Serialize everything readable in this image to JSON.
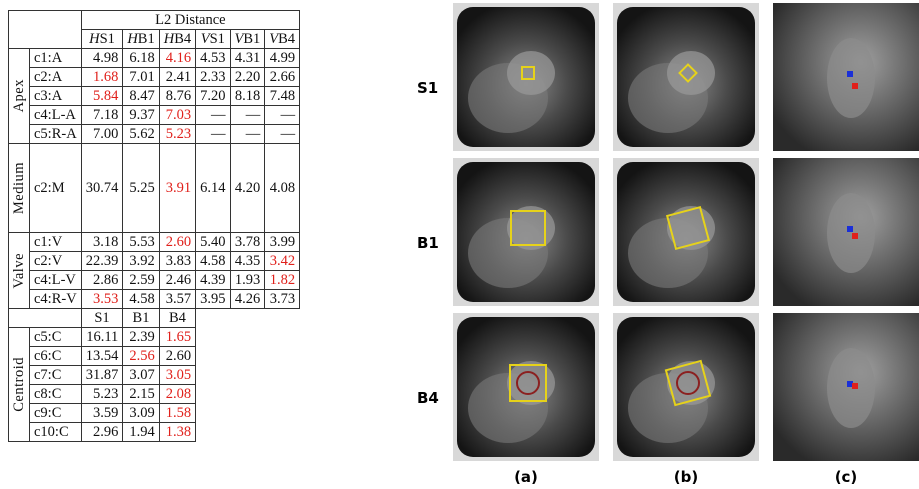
{
  "table": {
    "header": "L2 Distance",
    "columns": [
      "HS1",
      "HB1",
      "HB4",
      "VS1",
      "VB1",
      "VB4"
    ],
    "groups": [
      {
        "name": "Apex",
        "rows": [
          {
            "label": "c1:A",
            "cells": [
              "4.98",
              "6.18",
              "4.16",
              "4.53",
              "4.31",
              "4.99"
            ],
            "highlight": [
              2
            ]
          },
          {
            "label": "c2:A",
            "cells": [
              "1.68",
              "7.01",
              "2.41",
              "2.33",
              "2.20",
              "2.66"
            ],
            "highlight": [
              0
            ]
          },
          {
            "label": "c3:A",
            "cells": [
              "5.84",
              "8.47",
              "8.76",
              "7.20",
              "8.18",
              "7.48"
            ],
            "highlight": [
              0
            ]
          },
          {
            "label": "c4:L-A",
            "cells": [
              "7.18",
              "9.37",
              "7.03",
              "—",
              "—",
              "—"
            ],
            "highlight": [
              2
            ]
          },
          {
            "label": "c5:R-A",
            "cells": [
              "7.00",
              "5.62",
              "5.23",
              "—",
              "—",
              "—"
            ],
            "highlight": [
              2
            ]
          }
        ]
      },
      {
        "name": "Medium",
        "tall": true,
        "rows": [
          {
            "label": "c2:M",
            "cells": [
              "30.74",
              "5.25",
              "3.91",
              "6.14",
              "4.20",
              "4.08"
            ],
            "highlight": [
              2
            ]
          }
        ]
      },
      {
        "name": "Valve",
        "rows": [
          {
            "label": "c1:V",
            "cells": [
              "3.18",
              "5.53",
              "2.60",
              "5.40",
              "3.78",
              "3.99"
            ],
            "highlight": [
              2
            ]
          },
          {
            "label": "c2:V",
            "cells": [
              "22.39",
              "3.92",
              "3.83",
              "4.58",
              "4.35",
              "3.42"
            ],
            "highlight": [
              5
            ]
          },
          {
            "label": "c4:L-V",
            "cells": [
              "2.86",
              "2.59",
              "2.46",
              "4.39",
              "1.93",
              "1.82"
            ],
            "highlight": [
              5
            ]
          },
          {
            "label": "c4:R-V",
            "cells": [
              "3.53",
              "4.58",
              "3.57",
              "3.95",
              "4.26",
              "3.73"
            ],
            "highlight": [
              0
            ]
          }
        ]
      }
    ],
    "centroid": {
      "columns": [
        "S1",
        "B1",
        "B4"
      ],
      "name": "Centroid",
      "rows": [
        {
          "label": "c5:C",
          "cells": [
            "16.11",
            "2.39",
            "1.65"
          ],
          "highlight": [
            2
          ]
        },
        {
          "label": "c6:C",
          "cells": [
            "13.54",
            "2.56",
            "2.60"
          ],
          "highlight": [
            1
          ]
        },
        {
          "label": "c7:C",
          "cells": [
            "31.87",
            "3.07",
            "3.05"
          ],
          "highlight": [
            2
          ]
        },
        {
          "label": "c8:C",
          "cells": [
            "5.23",
            "2.15",
            "2.08"
          ],
          "highlight": [
            2
          ]
        },
        {
          "label": "c9:C",
          "cells": [
            "3.59",
            "3.09",
            "1.58"
          ],
          "highlight": [
            2
          ]
        },
        {
          "label": "c10:C",
          "cells": [
            "2.96",
            "1.94",
            "1.38"
          ],
          "highlight": [
            2
          ]
        }
      ]
    }
  },
  "figure": {
    "rows": [
      "S1",
      "B1",
      "B4"
    ],
    "columns": [
      "(a)",
      "(b)",
      "(c)"
    ]
  }
}
